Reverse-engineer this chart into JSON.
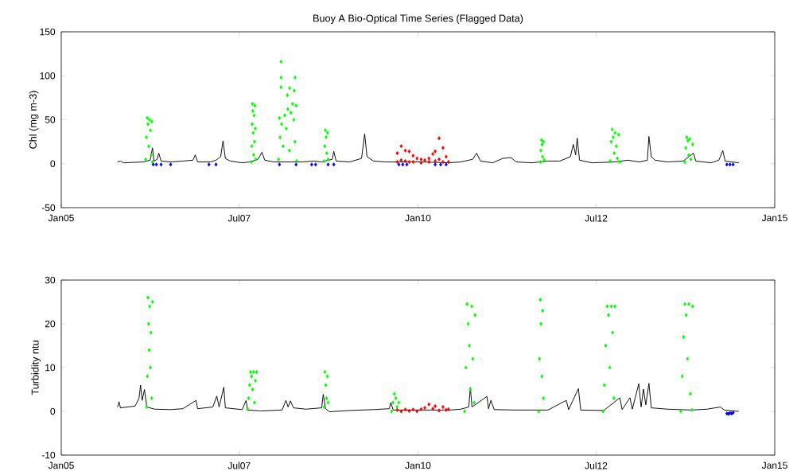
{
  "chart_data": [
    {
      "type": "line",
      "title": "Buoy A Bio-Optical Time Series (Flagged Data)",
      "ylabel": "Chl (mg m-3)",
      "xlim": [
        "2005-01-01",
        "2015-01-01"
      ],
      "xticks": [
        {
          "value": "2005-01-01",
          "label": "Jan05"
        },
        {
          "value": "2007-07-01",
          "label": "Jul07"
        },
        {
          "value": "2010-01-01",
          "label": "Jan10"
        },
        {
          "value": "2012-07-01",
          "label": "Jul12"
        },
        {
          "value": "2015-01-01",
          "label": "Jan15"
        }
      ],
      "ylim": [
        -50,
        150
      ],
      "yticks": [
        -50,
        0,
        50,
        100,
        150
      ],
      "series": [
        {
          "color": "#000000",
          "line_style": "solid",
          "x": [
            "2005-10-16",
            "2005-10-31",
            "2005-11-16",
            "2006-02-24",
            "2006-04-01",
            "2006-04-13",
            "2006-04-21",
            "2006-05-07",
            "2006-05-15",
            "2006-05-27",
            "2006-07-15",
            "2006-09-15",
            "2006-11-06",
            "2006-11-18",
            "2006-11-30",
            "2007-02-04",
            "2007-03-04",
            "2007-03-28",
            "2007-04-09",
            "2007-04-21",
            "2007-05-16",
            "2007-07-16",
            "2007-08-25",
            "2007-10-05",
            "2007-10-25",
            "2007-11-09",
            "2007-12-25",
            "2008-05-17",
            "2008-07-17",
            "2008-08-26",
            "2008-10-19",
            "2008-10-27",
            "2008-11-08",
            "2009-01-16",
            "2009-03-18",
            "2009-04-03",
            "2009-04-15",
            "2009-05-18",
            "2009-07-18",
            "2009-09-09",
            "2010-01-17",
            "2010-06-08",
            "2010-08-08",
            "2010-10-08",
            "2010-10-28",
            "2010-11-17",
            "2011-01-18",
            "2011-03-11",
            "2011-04-21",
            "2011-05-19",
            "2011-08-08",
            "2011-10-28",
            "2011-12-28",
            "2012-02-20",
            "2012-03-06",
            "2012-03-18",
            "2012-03-26",
            "2012-04-07",
            "2012-06-09",
            "2012-10-09",
            "2012-12-08",
            "2013-02-08",
            "2013-03-20",
            "2013-03-28",
            "2013-04-09",
            "2013-04-29",
            "2013-06-30",
            "2013-09-19",
            "2013-11-11",
            "2013-11-23",
            "2014-02-09",
            "2014-03-21",
            "2014-04-10",
            "2014-04-22",
            "2014-07-01"
          ],
          "values": [
            2,
            3,
            1,
            2,
            4,
            18,
            3,
            5,
            12,
            3,
            2,
            3,
            4,
            10,
            2,
            2,
            4,
            8,
            26,
            6,
            3,
            1,
            2,
            5,
            13,
            4,
            2,
            2,
            3,
            2,
            5,
            14,
            3,
            2,
            6,
            34,
            8,
            3,
            2,
            2,
            2,
            1,
            2,
            5,
            12,
            3,
            1,
            6,
            7,
            2,
            1,
            3,
            3,
            8,
            22,
            10,
            29,
            4,
            1,
            2,
            4,
            2,
            4,
            31,
            8,
            4,
            2,
            3,
            12,
            3,
            1,
            4,
            15,
            3,
            1
          ]
        },
        {
          "type": "scatter",
          "color": "#00ff00",
          "marker": "diamond",
          "x": [
            "2006-03-09",
            "2006-03-13",
            "2006-03-17",
            "2006-03-21",
            "2006-03-25",
            "2006-03-29",
            "2006-04-02",
            "2006-04-06",
            "2006-04-10",
            "2006-04-13",
            "2007-09-01",
            "2007-09-03",
            "2007-09-05",
            "2007-09-07",
            "2007-09-09",
            "2007-09-11",
            "2007-09-13",
            "2007-09-15",
            "2007-09-17",
            "2007-09-19",
            "2007-09-21",
            "2007-09-24",
            "2008-01-31",
            "2008-01-31",
            "2008-01-31",
            "2008-04-12",
            "2008-03-15",
            "2008-04-08",
            "2008-03-03",
            "2008-01-23",
            "2008-01-18",
            "2008-01-26",
            "2008-02-03",
            "2008-02-11",
            "2008-02-19",
            "2008-02-27",
            "2008-03-06",
            "2008-03-14",
            "2008-03-22",
            "2008-03-30",
            "2008-04-05",
            "2008-04-11",
            "2008-04-17",
            "2008-04-20",
            "2008-09-08",
            "2008-09-11",
            "2008-09-14",
            "2008-09-18",
            "2008-09-21",
            "2008-09-25",
            "2008-09-28",
            "2011-09-19",
            "2011-09-22",
            "2011-09-25",
            "2011-09-28",
            "2011-10-01",
            "2011-10-05",
            "2011-10-09",
            "2012-09-11",
            "2012-09-16",
            "2012-09-21",
            "2012-09-26",
            "2012-10-01",
            "2012-10-06",
            "2012-10-12",
            "2012-10-18",
            "2012-10-24",
            "2012-10-30",
            "2013-09-28",
            "2013-10-03",
            "2013-10-08",
            "2013-10-13",
            "2013-10-18",
            "2013-10-23",
            "2013-10-29",
            "2013-11-07"
          ],
          "values": [
            5,
            30,
            52,
            45,
            20,
            50,
            38,
            10,
            48,
            2,
            2,
            20,
            45,
            68,
            60,
            35,
            10,
            55,
            25,
            66,
            40,
            5,
            116,
            98,
            87,
            98,
            86,
            83,
            78,
            52,
            5,
            30,
            45,
            20,
            55,
            40,
            62,
            15,
            58,
            68,
            50,
            25,
            66,
            3,
            3,
            20,
            38,
            30,
            12,
            35,
            5,
            2,
            15,
            27,
            22,
            8,
            25,
            4,
            3,
            25,
            39,
            30,
            12,
            35,
            20,
            6,
            33,
            2,
            2,
            18,
            30,
            26,
            10,
            28,
            5,
            22
          ]
        },
        {
          "type": "scatter",
          "color": "#ff0000",
          "marker": "diamond",
          "x": [
            "2009-09-17",
            "2009-09-17",
            "2009-10-07",
            "2009-10-07",
            "2009-10-28",
            "2009-10-28",
            "2009-11-17",
            "2009-11-17",
            "2009-12-07",
            "2009-12-07",
            "2009-12-27",
            "2010-01-17",
            "2010-01-17",
            "2010-02-05",
            "2010-02-26",
            "2010-02-26",
            "2010-03-18",
            "2010-03-30",
            "2010-03-30",
            "2010-04-19",
            "2010-04-19",
            "2010-05-09",
            "2010-05-09",
            "2010-05-25",
            "2010-06-06"
          ],
          "values": [
            12,
            2,
            20,
            4,
            15,
            3,
            14,
            2,
            9,
            2,
            6,
            5,
            1,
            4,
            6,
            2,
            11,
            14,
            3,
            29,
            5,
            18,
            2,
            8,
            2
          ]
        },
        {
          "type": "scatter",
          "color": "#0000ff",
          "marker": "diamond",
          "x": [
            "2006-04-17",
            "2006-05-03",
            "2006-05-27",
            "2006-07-15",
            "2007-01-27",
            "2007-03-04",
            "2008-01-23",
            "2008-04-17",
            "2008-07-06",
            "2008-07-26",
            "2008-09-28",
            "2008-10-27",
            "2009-09-25",
            "2009-10-15",
            "2009-11-05",
            "2010-03-30",
            "2010-04-27",
            "2010-05-25",
            "2014-05-01",
            "2014-05-17",
            "2014-06-02"
          ],
          "values": [
            -1,
            -1,
            -1,
            -1,
            -1,
            -1,
            -1,
            -1,
            -1,
            -1,
            -1,
            -1,
            -1,
            -1,
            -1,
            -1,
            -1,
            -1,
            -1,
            -1,
            -1
          ]
        }
      ]
    },
    {
      "type": "line",
      "ylabel": "Turbidity ntu",
      "xlim": [
        "2005-01-01",
        "2015-01-01"
      ],
      "xticks": [
        {
          "value": "2005-01-01",
          "label": "Jan05"
        },
        {
          "value": "2007-07-01",
          "label": "Jul07"
        },
        {
          "value": "2010-01-01",
          "label": "Jan10"
        },
        {
          "value": "2012-07-01",
          "label": "Jul12"
        },
        {
          "value": "2015-01-01",
          "label": "Jan15"
        }
      ],
      "ylim": [
        -10,
        30
      ],
      "yticks": [
        -10,
        0,
        10,
        20,
        30
      ],
      "series": [
        {
          "color": "#000000",
          "line_style": "solid",
          "x": [
            "2005-10-16",
            "2005-10-24",
            "2005-10-31",
            "2006-01-14",
            "2006-02-03",
            "2006-02-11",
            "2006-02-19",
            "2006-03-03",
            "2006-03-15",
            "2006-04-24",
            "2006-07-15",
            "2006-09-15",
            "2006-11-22",
            "2006-11-30",
            "2007-02-16",
            "2007-03-08",
            "2007-03-20",
            "2007-04-13",
            "2007-04-21",
            "2007-07-16",
            "2007-08-05",
            "2007-08-13",
            "2007-10-18",
            "2008-02-05",
            "2008-02-25",
            "2008-03-07",
            "2008-03-19",
            "2008-04-04",
            "2008-06-06",
            "2008-08-26",
            "2008-09-03",
            "2008-09-15",
            "2008-10-05",
            "2009-01-16",
            "2009-05-18",
            "2009-08-07",
            "2009-08-15",
            "2009-08-27",
            "2010-06-16",
            "2010-08-08",
            "2010-09-18",
            "2010-09-26",
            "2010-10-04",
            "2010-12-20",
            "2010-12-28",
            "2011-01-09",
            "2011-01-26",
            "2011-05-19",
            "2011-10-28",
            "2012-01-30",
            "2012-02-11",
            "2012-04-01",
            "2012-04-13",
            "2012-08-09",
            "2012-10-30",
            "2012-11-11",
            "2012-12-21",
            "2013-01-02",
            "2013-02-04",
            "2013-02-16",
            "2013-02-28",
            "2013-03-12",
            "2013-03-28",
            "2013-04-09",
            "2013-06-30",
            "2013-10-31",
            "2014-01-20",
            "2014-03-29",
            "2014-04-18",
            "2014-07-01"
          ],
          "values": [
            1,
            2.2,
            0.8,
            1.2,
            3,
            6,
            2.5,
            5,
            1,
            0.5,
            0.4,
            0.6,
            2.5,
            0.6,
            1,
            3.5,
            1,
            5.5,
            0.8,
            0.4,
            2.5,
            0.3,
            0.1,
            0.3,
            2.5,
            1,
            2.4,
            0.8,
            0.5,
            0.8,
            3.9,
            0.6,
            -0.1,
            0.2,
            0.4,
            0.6,
            2,
            0.3,
            0.3,
            0.5,
            1,
            5.5,
            1,
            3.4,
            0.6,
            2.5,
            0.4,
            0.3,
            0.3,
            2.5,
            0.4,
            5.2,
            0.3,
            0.2,
            3.1,
            0.4,
            3.1,
            0.5,
            6.3,
            1,
            5.1,
            1.5,
            6.4,
            0.8,
            0.5,
            0.3,
            0.5,
            1,
            0.3,
            0
          ]
        },
        {
          "type": "scatter",
          "color": "#00ff00",
          "marker": "diamond",
          "x": [
            "2006-03-15",
            "2006-03-18",
            "2006-03-21",
            "2006-03-24",
            "2006-03-27",
            "2006-03-30",
            "2006-04-02",
            "2006-04-05",
            "2006-04-09",
            "2006-04-13",
            "2007-08-13",
            "2007-08-18",
            "2007-08-23",
            "2007-08-28",
            "2007-09-02",
            "2007-09-07",
            "2007-09-12",
            "2007-09-17",
            "2007-09-22",
            "2007-09-28",
            "2008-09-08",
            "2008-09-12",
            "2008-09-16",
            "2008-09-20",
            "2008-09-24",
            "2008-09-28",
            "2009-08-19",
            "2009-08-26",
            "2009-09-02",
            "2009-09-09",
            "2009-09-16",
            "2009-09-25",
            "2010-08-28",
            "2010-09-03",
            "2010-09-09",
            "2010-09-15",
            "2010-09-21",
            "2010-09-27",
            "2010-10-03",
            "2010-10-09",
            "2010-10-15",
            "2010-10-20",
            "2011-09-11",
            "2011-09-15",
            "2011-09-19",
            "2011-09-23",
            "2011-09-27",
            "2011-10-01",
            "2011-10-05",
            "2012-08-05",
            "2012-08-12",
            "2012-08-19",
            "2012-08-26",
            "2012-09-02",
            "2012-09-09",
            "2012-09-16",
            "2012-09-23",
            "2012-09-30",
            "2012-10-05",
            "2013-09-07",
            "2013-09-14",
            "2013-09-21",
            "2013-09-28",
            "2013-10-05",
            "2013-10-12",
            "2013-10-19",
            "2013-10-26",
            "2013-11-03",
            "2013-11-07"
          ],
          "values": [
            1,
            8,
            26,
            20,
            14,
            24,
            10,
            18,
            3,
            25,
            0.5,
            3,
            6,
            9,
            8,
            5,
            9,
            2,
            7,
            9,
            1,
            9,
            6,
            3,
            8,
            2,
            0,
            2,
            4,
            3,
            1,
            2,
            0,
            10,
            24.5,
            20,
            15,
            5,
            24,
            12,
            2,
            22,
            0,
            12,
            25.5,
            20,
            8,
            23,
            3,
            0,
            6,
            15,
            24,
            22,
            10,
            24,
            18,
            3,
            24,
            0,
            8,
            17,
            24.5,
            22,
            12,
            24.5,
            4,
            0.3,
            24
          ]
        },
        {
          "type": "scatter",
          "color": "#ff0000",
          "marker": "diamond",
          "x": [
            "2009-09-17",
            "2009-10-07",
            "2009-10-28",
            "2009-11-17",
            "2009-12-07",
            "2009-12-27",
            "2010-01-17",
            "2010-02-05",
            "2010-02-26",
            "2010-03-18",
            "2010-03-30",
            "2010-04-19",
            "2010-05-09",
            "2010-05-25",
            "2010-06-06"
          ],
          "values": [
            0.3,
            0,
            0.4,
            0.1,
            0.4,
            0,
            0.5,
            0.8,
            1.6,
            0.6,
            1.2,
            0.2,
            1,
            0.3,
            0.5
          ]
        },
        {
          "type": "scatter",
          "color": "#0000ff",
          "marker": "diamond",
          "x": [
            "2014-05-01",
            "2014-05-09",
            "2014-05-17",
            "2014-05-25",
            "2014-06-02"
          ],
          "values": [
            -0.5,
            -0.6,
            -0.4,
            -0.5,
            -0.3
          ]
        }
      ]
    }
  ]
}
